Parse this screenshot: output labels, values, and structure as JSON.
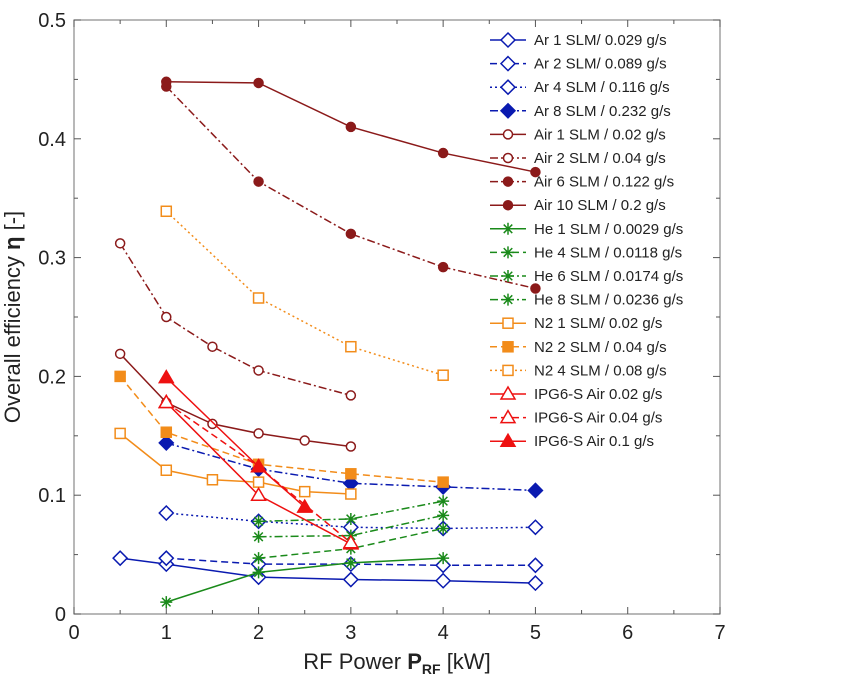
{
  "chart_data": {
    "type": "line",
    "title": "",
    "xlabel": {
      "prefix": "RF Power ",
      "symbol": "P",
      "subscript": "RF",
      "suffix": " [kW]"
    },
    "ylabel": {
      "prefix": "Overall efficiency ",
      "symbol": "η",
      "suffix": " [-]"
    },
    "xlim": [
      0,
      7
    ],
    "ylim": [
      0,
      0.5
    ],
    "xticks": [
      0,
      1,
      2,
      3,
      4,
      5,
      6,
      7
    ],
    "yticks": [
      0,
      0.1,
      0.2,
      0.3,
      0.4,
      0.5
    ],
    "xtick_labels": [
      "0",
      "1",
      "2",
      "3",
      "4",
      "5",
      "6",
      "7"
    ],
    "ytick_labels": [
      "0",
      "0.1",
      "0.2",
      "0.3",
      "0.4",
      "0.5"
    ],
    "grid": false,
    "legend_position": "top-right",
    "series": [
      {
        "name": "Ar 1 SLM/ 0.029 g/s",
        "color": "#0a1ab0",
        "marker": "diamond-open",
        "line": "solid",
        "x": [
          0.5,
          1.0,
          2.0,
          3.0,
          4.0,
          5.0
        ],
        "y": [
          0.047,
          0.042,
          0.031,
          0.029,
          0.028,
          0.026
        ]
      },
      {
        "name": "Ar 2 SLM/ 0.089 g/s",
        "color": "#0a1ab0",
        "marker": "diamond-open",
        "line": "dashed",
        "x": [
          1.0,
          2.0,
          3.0,
          4.0,
          5.0
        ],
        "y": [
          0.047,
          0.042,
          0.042,
          0.041,
          0.041
        ]
      },
      {
        "name": "Ar 4 SLM / 0.116 g/s",
        "color": "#0a1ab0",
        "marker": "diamond-open",
        "line": "dotted",
        "x": [
          1.0,
          2.0,
          3.0,
          4.0,
          5.0
        ],
        "y": [
          0.085,
          0.078,
          0.073,
          0.072,
          0.073
        ]
      },
      {
        "name": "Ar 8 SLM / 0.232 g/s",
        "color": "#0a1ab0",
        "marker": "diamond-filled",
        "line": "dashdot",
        "x": [
          1.0,
          2.0,
          3.0,
          4.0,
          5.0
        ],
        "y": [
          0.144,
          0.122,
          0.11,
          0.107,
          0.104
        ]
      },
      {
        "name": "Air 1 SLM / 0.02 g/s",
        "color": "#8b1a1a",
        "marker": "circle-open",
        "line": "solid",
        "x": [
          0.5,
          1.0,
          1.5,
          2.0,
          2.5,
          3.0
        ],
        "y": [
          0.219,
          0.178,
          0.16,
          0.152,
          0.146,
          0.141
        ]
      },
      {
        "name": "Air 2 SLM / 0.04 g/s",
        "color": "#8b1a1a",
        "marker": "circle-open",
        "line": "dashdot",
        "x": [
          0.5,
          1.0,
          1.5,
          2.0,
          3.0
        ],
        "y": [
          0.312,
          0.25,
          0.225,
          0.205,
          0.184
        ]
      },
      {
        "name": "Air 6 SLM / 0.122 g/s",
        "color": "#8b1a1a",
        "marker": "circle-filled",
        "line": "dashdot",
        "x": [
          1.0,
          2.0,
          3.0,
          4.0,
          5.0
        ],
        "y": [
          0.444,
          0.364,
          0.32,
          0.292,
          0.274
        ]
      },
      {
        "name": "Air 10 SLM / 0.2 g/s",
        "color": "#8b1a1a",
        "marker": "circle-filled",
        "line": "solid",
        "x": [
          1.0,
          2.0,
          3.0,
          4.0,
          5.0
        ],
        "y": [
          0.448,
          0.447,
          0.41,
          0.388,
          0.372
        ]
      },
      {
        "name": "He 1 SLM / 0.0029 g/s",
        "color": "#1a8a1a",
        "marker": "asterisk",
        "line": "solid",
        "x": [
          1.0,
          2.0,
          3.0,
          4.0
        ],
        "y": [
          0.01,
          0.035,
          0.043,
          0.047
        ]
      },
      {
        "name": "He 4 SLM / 0.0118 g/s",
        "color": "#1a8a1a",
        "marker": "asterisk",
        "line": "dashed",
        "x": [
          2.0,
          3.0,
          4.0
        ],
        "y": [
          0.047,
          0.055,
          0.072
        ]
      },
      {
        "name": "He 6 SLM / 0.0174 g/s",
        "color": "#1a8a1a",
        "marker": "asterisk",
        "line": "dashdot",
        "x": [
          2.0,
          3.0,
          4.0
        ],
        "y": [
          0.065,
          0.066,
          0.083
        ]
      },
      {
        "name": "He 8 SLM / 0.0236 g/s",
        "color": "#1a8a1a",
        "marker": "asterisk",
        "line": "dashdot",
        "x": [
          2.0,
          3.0,
          4.0
        ],
        "y": [
          0.078,
          0.08,
          0.095
        ]
      },
      {
        "name": "N2 1 SLM/ 0.02 g/s",
        "color": "#f28c1a",
        "marker": "square-open",
        "line": "solid",
        "x": [
          0.5,
          1.0,
          1.5,
          2.0,
          2.5,
          3.0
        ],
        "y": [
          0.152,
          0.121,
          0.113,
          0.111,
          0.103,
          0.101
        ]
      },
      {
        "name": "N2 2 SLM / 0.04 g/s",
        "color": "#f28c1a",
        "marker": "square-filled",
        "line": "dashed",
        "x": [
          0.5,
          1.0,
          2.0,
          3.0,
          4.0
        ],
        "y": [
          0.2,
          0.153,
          0.126,
          0.118,
          0.111
        ]
      },
      {
        "name": "N2 4 SLM / 0.08 g/s",
        "color": "#f28c1a",
        "marker": "square-open",
        "line": "dotted",
        "x": [
          1.0,
          2.0,
          3.0,
          4.0
        ],
        "y": [
          0.339,
          0.266,
          0.225,
          0.201
        ]
      },
      {
        "name": "IPG6-S Air 0.02 g/s",
        "color": "#ee1111",
        "marker": "triangle-open",
        "line": "solid",
        "x": [
          1.0,
          2.0,
          3.0
        ],
        "y": [
          0.178,
          0.1,
          0.059
        ]
      },
      {
        "name": "IPG6-S Air 0.04 g/s",
        "color": "#ee1111",
        "marker": "triangle-open",
        "line": "dashed",
        "x": [
          1.0,
          2.0,
          3.0
        ],
        "y": [
          0.178,
          0.124,
          0.06
        ]
      },
      {
        "name": "IPG6-S Air 0.1 g/s",
        "color": "#ee1111",
        "marker": "triangle-filled",
        "line": "solid",
        "x": [
          1.0,
          2.0,
          2.5
        ],
        "y": [
          0.199,
          0.124,
          0.09
        ]
      }
    ]
  }
}
